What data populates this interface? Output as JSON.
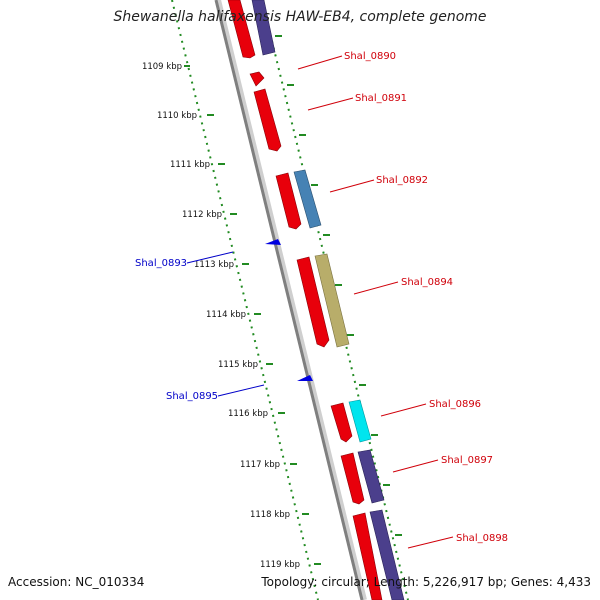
{
  "title": "Shewanella halifaxensis HAW-EB4, complete genome",
  "footer": {
    "accession": "Accession: NC_010334",
    "topology": "Topology: circular; Length: 5,226,917 bp; Genes: 4,433"
  },
  "colors": {
    "forward_strand": "#e8000b",
    "reverse_strand": "#0000e0",
    "backbone": "#8c8c8c",
    "tick_dotted": "#228b22",
    "cog_purple": "#4b3f8c",
    "cog_steelblue": "#4682b4",
    "cog_khaki": "#b8ad6a",
    "cog_cyan": "#00e5ee"
  },
  "scale_ticks": [
    "1109 kbp",
    "1110 kbp",
    "1111 kbp",
    "1112 kbp",
    "1113 kbp",
    "1114 kbp",
    "1115 kbp",
    "1116 kbp",
    "1117 kbp",
    "1118 kbp",
    "1119 kbp"
  ],
  "forward_gene_labels": [
    "Shal_0890",
    "Shal_0891",
    "Shal_0892",
    "Shal_0894",
    "Shal_0896",
    "Shal_0897",
    "Shal_0898"
  ],
  "reverse_gene_labels": [
    "Shal_0893",
    "Shal_0895"
  ]
}
